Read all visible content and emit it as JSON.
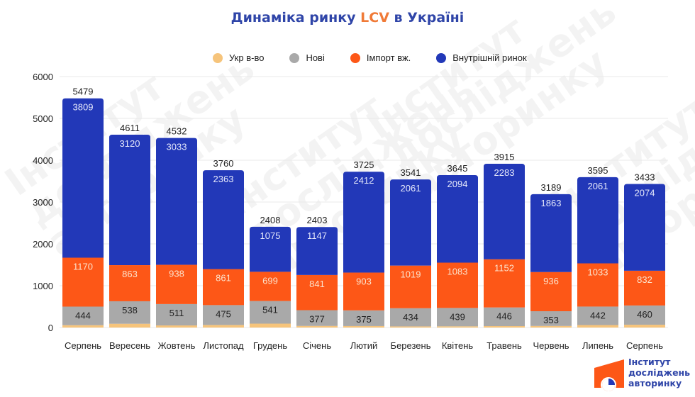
{
  "title": {
    "prefix": "Динаміка ринку ",
    "accent": "LCV",
    "suffix": " в Україні"
  },
  "watermark_text": "Інститут\nдосліджень\nавторинку",
  "logo": {
    "line1": "Інститут",
    "line2": "досліджень",
    "line3": "авторинку"
  },
  "colors": {
    "ukr": "#f6c47b",
    "novi": "#a9a9a9",
    "import": "#fd5717",
    "domestic": "#2238b8",
    "title": "#2f45a8",
    "accent": "#f07a37"
  },
  "chart_data": {
    "type": "bar",
    "stacked": true,
    "title": "Динаміка ринку LCV в Україні",
    "xlabel": "",
    "ylabel": "",
    "ylim": [
      0,
      6000
    ],
    "yticks": [
      0,
      1000,
      2000,
      3000,
      4000,
      5000,
      6000
    ],
    "grid": true,
    "legend_position": "top-center",
    "categories": [
      "Серпень",
      "Вересень",
      "Жовтень",
      "Листопад",
      "Грудень",
      "Січень",
      "Лютий",
      "Березень",
      "Квітень",
      "Травень",
      "Червень",
      "Липень",
      "Серпень"
    ],
    "series": [
      {
        "name": "Укр в-во",
        "key": "ukr",
        "values": [
          56,
          90,
          50,
          61,
          93,
          38,
          35,
          27,
          29,
          34,
          37,
          59,
          67
        ],
        "labeled": false
      },
      {
        "name": "Нові",
        "key": "novi",
        "values": [
          444,
          538,
          511,
          475,
          541,
          377,
          375,
          434,
          439,
          446,
          353,
          442,
          460
        ],
        "labeled": true
      },
      {
        "name": "Імпорт вж.",
        "key": "import",
        "values": [
          1170,
          863,
          938,
          861,
          699,
          841,
          903,
          1019,
          1083,
          1152,
          936,
          1033,
          832
        ],
        "labeled": true
      },
      {
        "name": "Внутрішній ринок",
        "key": "domestic",
        "values": [
          3809,
          3120,
          3033,
          2363,
          1075,
          1147,
          2412,
          2061,
          2094,
          2283,
          1863,
          2061,
          2074
        ],
        "labeled": true
      }
    ],
    "totals": [
      5479,
      4611,
      4532,
      3760,
      2408,
      2403,
      3725,
      3541,
      3645,
      3915,
      3189,
      3595,
      3433
    ]
  }
}
